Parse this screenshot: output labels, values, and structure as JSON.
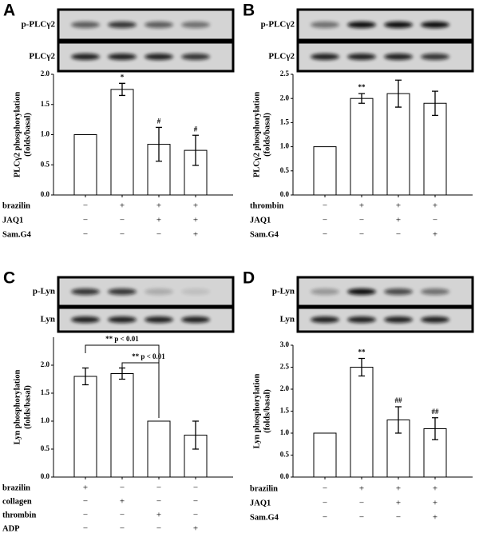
{
  "chart_data": [
    {
      "type": "bar",
      "panel": "A",
      "blot_labels": [
        "p-PLCγ2",
        "PLCγ2"
      ],
      "ylabel": [
        "PLCγ2 phosphorylation",
        "(folds/basal)"
      ],
      "values": [
        1,
        1.75,
        0.84,
        0.74
      ],
      "errors": [
        null,
        0.1,
        0.28,
        0.25
      ],
      "annotations": [
        null,
        "*",
        "#",
        "#"
      ],
      "ylim": [
        0,
        2
      ],
      "yticks": [
        {
          "value": 0,
          "label": "0.0"
        },
        0.5,
        {
          "value": 1,
          "label": "1.0"
        },
        1.5,
        {
          "value": 2,
          "label": "2.0"
        }
      ],
      "color": "#ffffff",
      "treatments": [
        {
          "label": "brazilin",
          "signs": [
            "−",
            "+",
            "+",
            "+"
          ]
        },
        {
          "label": "JAQ1",
          "signs": [
            "−",
            "−",
            "+",
            "+"
          ]
        },
        {
          "label": "Sam.G4",
          "signs": [
            "−",
            "−",
            "−",
            "+"
          ]
        }
      ]
    },
    {
      "type": "bar",
      "panel": "B",
      "blot_labels": [
        "p-PLCγ2",
        "PLCγ2"
      ],
      "ylabel": [
        "PLCγ2 phosphorylation",
        "(folds/basal)"
      ],
      "values": [
        1,
        2.0,
        2.1,
        1.9
      ],
      "errors": [
        null,
        0.1,
        0.28,
        0.25
      ],
      "annotations": [
        null,
        "**",
        null,
        null
      ],
      "ylim": [
        0,
        2.5
      ],
      "yticks": [
        {
          "value": 0,
          "label": "0.0"
        },
        0.5,
        {
          "value": 1,
          "label": "1.0"
        },
        1.5,
        {
          "value": 2,
          "label": "2.0"
        },
        2.5
      ],
      "color": "#ffffff",
      "treatments": [
        {
          "label": "thrombin",
          "signs": [
            "−",
            "+",
            "+",
            "+"
          ]
        },
        {
          "label": "JAQ1",
          "signs": [
            "−",
            "−",
            "+",
            "−"
          ]
        },
        {
          "label": "Sam.G4",
          "signs": [
            "−",
            "−",
            "−",
            "+"
          ]
        }
      ]
    },
    {
      "type": "bar",
      "panel": "C",
      "blot_labels": [
        "p-Lyn",
        "Lyn"
      ],
      "ylabel": [
        "Lyn phosphorylation",
        "(folds/basal)"
      ],
      "values": [
        1.8,
        1.85,
        1.0,
        0.75
      ],
      "errors": [
        0.15,
        0.1,
        null,
        0.25
      ],
      "annotations": [
        null,
        null,
        null,
        null
      ],
      "brackets": [
        "** p < 0.01",
        "** p < 0.01"
      ],
      "ylim": [
        0,
        2.5
      ],
      "yticks": [
        {
          "value": 0,
          "label": "0.0"
        },
        0.5,
        {
          "value": 1,
          "label": "1.0"
        },
        1.5,
        {
          "value": 2,
          "label": "2.0"
        }
      ],
      "color": "#ffffff",
      "treatments": [
        {
          "label": "brazilin",
          "signs": [
            "+",
            "−",
            "−",
            "−"
          ]
        },
        {
          "label": "collagen",
          "signs": [
            "−",
            "+",
            "−",
            "−"
          ]
        },
        {
          "label": "thrombin",
          "signs": [
            "−",
            "−",
            "+",
            "−"
          ]
        },
        {
          "label": "ADP",
          "signs": [
            "−",
            "−",
            "−",
            "+"
          ]
        }
      ]
    },
    {
      "type": "bar",
      "panel": "D",
      "blot_labels": [
        "p-Lyn",
        "Lyn"
      ],
      "ylabel": [
        "Lyn phosphorylation",
        "(folds/basal)"
      ],
      "values": [
        1,
        2.5,
        1.3,
        1.1
      ],
      "errors": [
        null,
        0.2,
        0.3,
        0.25
      ],
      "annotations": [
        null,
        "**",
        "##",
        "##"
      ],
      "ylim": [
        0,
        3
      ],
      "yticks": [
        {
          "value": 0,
          "label": "0.0"
        },
        0.5,
        {
          "value": 1,
          "label": "1.0"
        },
        1.5,
        {
          "value": 2,
          "label": "2.0"
        },
        2.5,
        {
          "value": 3,
          "label": "3.0"
        }
      ],
      "color": "#ffffff",
      "treatments": [
        {
          "label": "brazilin",
          "signs": [
            "−",
            "+",
            "+",
            "+"
          ]
        },
        {
          "label": "JAQ1",
          "signs": [
            "−",
            "−",
            "+",
            "+"
          ]
        },
        {
          "label": "Sam.G4",
          "signs": [
            "−",
            "−",
            "−",
            "+"
          ]
        }
      ]
    }
  ]
}
